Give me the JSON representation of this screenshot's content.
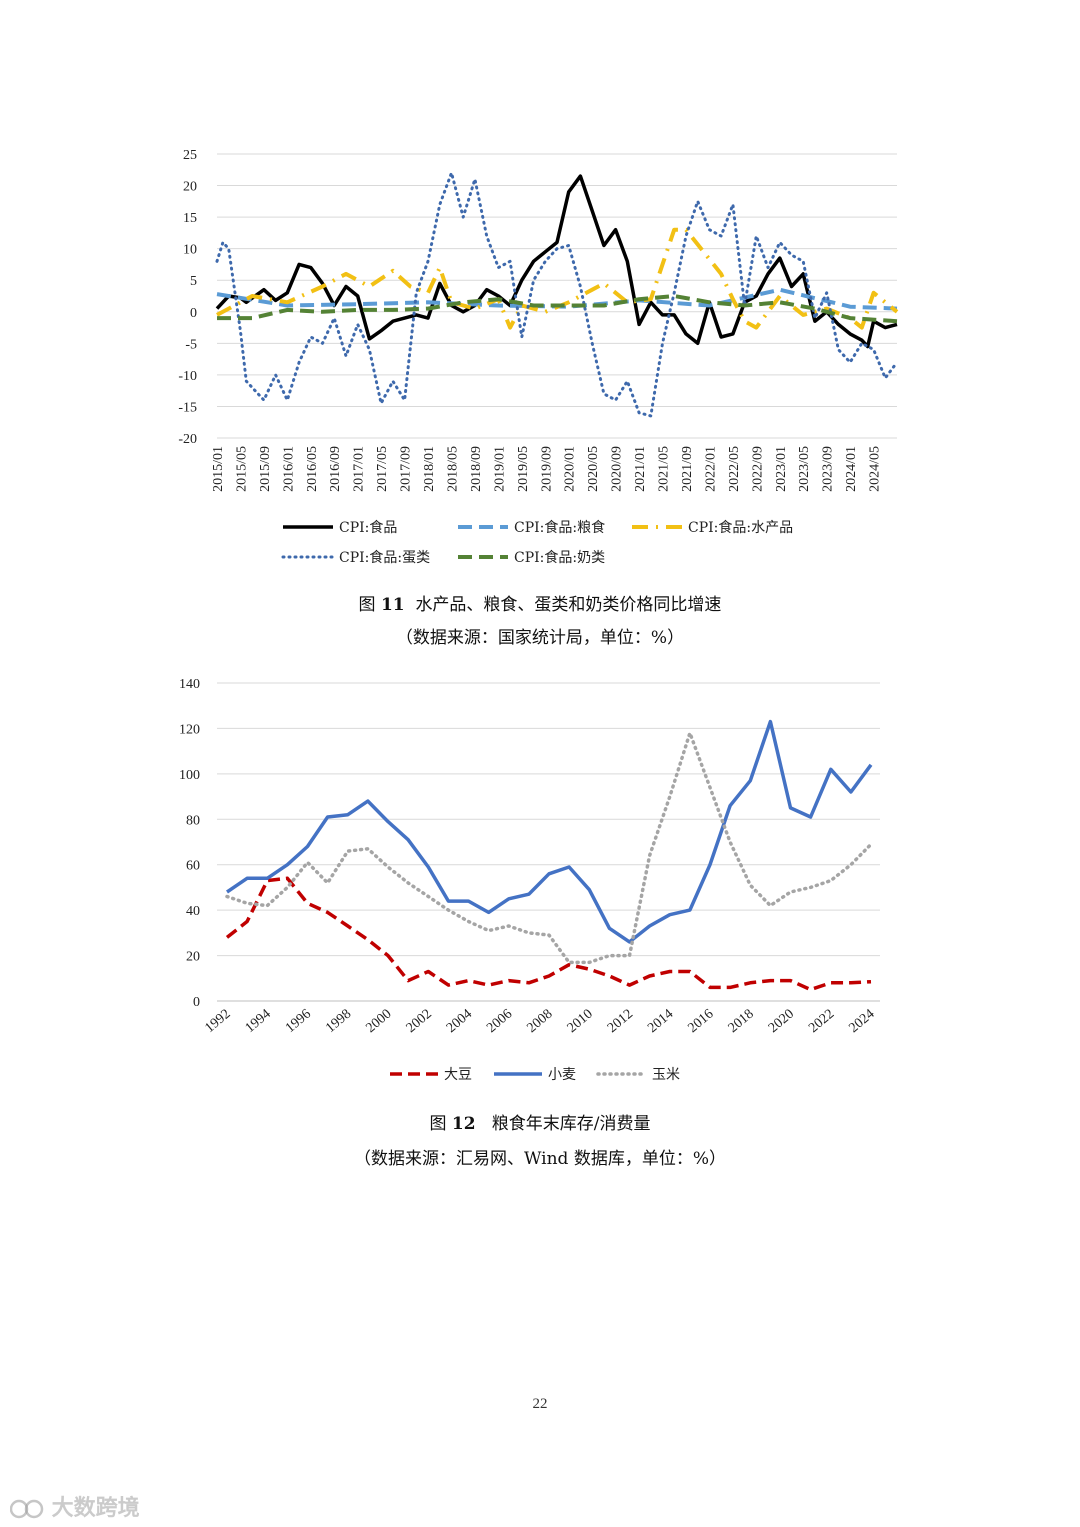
{
  "chart_data": [
    {
      "type": "line",
      "ylim": [
        -20,
        25
      ],
      "yticks": [
        -20,
        -15,
        -10,
        -5,
        0,
        5,
        10,
        15,
        20,
        25
      ],
      "x_labels": [
        "2015/01",
        "2015/05",
        "2015/09",
        "2016/01",
        "2016/05",
        "2016/09",
        "2017/01",
        "2017/05",
        "2017/09",
        "2018/01",
        "2018/05",
        "2018/09",
        "2019/01",
        "2019/05",
        "2019/09",
        "2020/01",
        "2020/05",
        "2020/09",
        "2021/01",
        "2021/05",
        "2021/09",
        "2022/01",
        "2022/05",
        "2022/09",
        "2023/01",
        "2023/05",
        "2023/09",
        "2024/01",
        "2024/05"
      ],
      "x_start": "2015/01",
      "x_end": "2024/05",
      "grid": true,
      "legend_position": "bottom",
      "series": [
        {
          "name": "CPI:食品",
          "color": "#000000",
          "style": "solid",
          "points": [
            [
              0,
              0.5
            ],
            [
              2,
              2.5
            ],
            [
              4,
              2.2
            ],
            [
              5,
              1.5
            ],
            [
              8,
              3.5
            ],
            [
              10,
              1.8
            ],
            [
              12,
              3
            ],
            [
              14,
              7.5
            ],
            [
              16,
              7
            ],
            [
              18,
              4.5
            ],
            [
              20,
              1
            ],
            [
              22,
              4
            ],
            [
              24,
              2.5
            ],
            [
              26,
              -4.3
            ],
            [
              28,
              -3
            ],
            [
              30,
              -1.5
            ],
            [
              32,
              -1
            ],
            [
              34,
              -0.5
            ],
            [
              36,
              -1
            ],
            [
              38,
              4.5
            ],
            [
              40,
              1
            ],
            [
              42,
              0
            ],
            [
              44,
              1
            ],
            [
              46,
              3.5
            ],
            [
              48,
              2.5
            ],
            [
              50,
              1
            ],
            [
              52,
              5
            ],
            [
              54,
              8
            ],
            [
              56,
              9.5
            ],
            [
              58,
              11
            ],
            [
              60,
              19
            ],
            [
              62,
              21.5
            ],
            [
              64,
              16
            ],
            [
              66,
              10.5
            ],
            [
              68,
              13
            ],
            [
              70,
              8
            ],
            [
              72,
              -2
            ],
            [
              74,
              1.5
            ],
            [
              76,
              -0.5
            ],
            [
              78,
              -0.5
            ],
            [
              80,
              -3.5
            ],
            [
              82,
              -5
            ],
            [
              84,
              1.5
            ],
            [
              86,
              -4
            ],
            [
              88,
              -3.5
            ],
            [
              90,
              1.5
            ],
            [
              92,
              2.5
            ],
            [
              94,
              6
            ],
            [
              96,
              8.5
            ],
            [
              98,
              4
            ],
            [
              100,
              6
            ],
            [
              102,
              -1.5
            ],
            [
              104,
              0
            ],
            [
              106,
              -2
            ],
            [
              108,
              -3.5
            ],
            [
              110,
              -4.5
            ],
            [
              111,
              -5.5
            ],
            [
              112,
              -1.5
            ],
            [
              114,
              -2.5
            ],
            [
              116,
              -2
            ]
          ]
        },
        {
          "name": "CPI:食品:粮食",
          "color": "#5b9bd5",
          "style": "dashed",
          "points": [
            [
              0,
              2.8
            ],
            [
              12,
              1
            ],
            [
              24,
              1.2
            ],
            [
              36,
              1.5
            ],
            [
              48,
              1
            ],
            [
              60,
              0.8
            ],
            [
              72,
              1.8
            ],
            [
              84,
              1
            ],
            [
              96,
              3.5
            ],
            [
              108,
              0.8
            ],
            [
              116,
              0.5
            ]
          ]
        },
        {
          "name": "CPI:食品:水产品",
          "color": "#f2c014",
          "style": "dashdot",
          "points": [
            [
              0,
              -0.5
            ],
            [
              6,
              2.5
            ],
            [
              12,
              1.5
            ],
            [
              18,
              4
            ],
            [
              22,
              6
            ],
            [
              26,
              4
            ],
            [
              30,
              6.5
            ],
            [
              33,
              4
            ],
            [
              36,
              3
            ],
            [
              38,
              7
            ],
            [
              40,
              1.5
            ],
            [
              44,
              0.5
            ],
            [
              48,
              2
            ],
            [
              50,
              -2.5
            ],
            [
              52,
              1
            ],
            [
              56,
              0
            ],
            [
              60,
              1.5
            ],
            [
              64,
              3.5
            ],
            [
              66,
              4.5
            ],
            [
              70,
              1.5
            ],
            [
              74,
              2
            ],
            [
              78,
              13
            ],
            [
              80,
              13
            ],
            [
              86,
              6
            ],
            [
              88,
              2
            ],
            [
              90,
              -1.5
            ],
            [
              92,
              -2.5
            ],
            [
              96,
              2.5
            ],
            [
              100,
              -0.5
            ],
            [
              104,
              0.5
            ],
            [
              108,
              -1
            ],
            [
              110,
              -2.5
            ],
            [
              112,
              3
            ],
            [
              116,
              0
            ]
          ]
        },
        {
          "name": "CPI:食品:蛋类",
          "color": "#3e69ac",
          "style": "dotted",
          "points": [
            [
              0,
              8
            ],
            [
              1,
              11
            ],
            [
              2,
              10
            ],
            [
              4,
              -3
            ],
            [
              5,
              -11
            ],
            [
              7,
              -13
            ],
            [
              8,
              -14
            ],
            [
              10,
              -10
            ],
            [
              12,
              -14
            ],
            [
              14,
              -8
            ],
            [
              16,
              -4
            ],
            [
              18,
              -5
            ],
            [
              20,
              -1
            ],
            [
              22,
              -7
            ],
            [
              24,
              -2
            ],
            [
              26,
              -6
            ],
            [
              28,
              -14.5
            ],
            [
              30,
              -11
            ],
            [
              32,
              -14
            ],
            [
              34,
              3
            ],
            [
              36,
              8
            ],
            [
              38,
              17
            ],
            [
              40,
              22
            ],
            [
              42,
              15
            ],
            [
              44,
              21
            ],
            [
              46,
              12
            ],
            [
              48,
              7
            ],
            [
              50,
              8
            ],
            [
              52,
              -4
            ],
            [
              54,
              5
            ],
            [
              56,
              8
            ],
            [
              58,
              10
            ],
            [
              60,
              10.5
            ],
            [
              62,
              4
            ],
            [
              64,
              -5
            ],
            [
              66,
              -13
            ],
            [
              68,
              -14
            ],
            [
              70,
              -11
            ],
            [
              72,
              -16
            ],
            [
              74,
              -16.5
            ],
            [
              76,
              -5
            ],
            [
              78,
              3
            ],
            [
              80,
              12
            ],
            [
              82,
              17.5
            ],
            [
              84,
              13
            ],
            [
              86,
              12
            ],
            [
              88,
              17
            ],
            [
              90,
              1
            ],
            [
              92,
              12
            ],
            [
              94,
              7
            ],
            [
              96,
              11
            ],
            [
              98,
              9
            ],
            [
              100,
              8
            ],
            [
              102,
              -1
            ],
            [
              104,
              3
            ],
            [
              106,
              -6
            ],
            [
              108,
              -8
            ],
            [
              110,
              -5
            ],
            [
              112,
              -6
            ],
            [
              114,
              -10.5
            ],
            [
              116,
              -8
            ]
          ]
        },
        {
          "name": "CPI:食品:奶类",
          "color": "#548235",
          "style": "dashed",
          "points": [
            [
              0,
              -1
            ],
            [
              6,
              -1
            ],
            [
              12,
              0.3
            ],
            [
              18,
              0
            ],
            [
              24,
              0.3
            ],
            [
              30,
              0.3
            ],
            [
              36,
              0.5
            ],
            [
              42,
              1.5
            ],
            [
              48,
              2
            ],
            [
              54,
              1
            ],
            [
              60,
              1
            ],
            [
              66,
              1
            ],
            [
              72,
              2
            ],
            [
              78,
              2.5
            ],
            [
              84,
              1.5
            ],
            [
              90,
              1
            ],
            [
              96,
              1.5
            ],
            [
              102,
              0.5
            ],
            [
              108,
              -1
            ],
            [
              116,
              -1.5
            ]
          ]
        }
      ]
    },
    {
      "type": "line",
      "categories": [
        1992,
        1993,
        1994,
        1995,
        1996,
        1997,
        1998,
        1999,
        2000,
        2001,
        2002,
        2003,
        2004,
        2005,
        2006,
        2007,
        2008,
        2009,
        2010,
        2011,
        2012,
        2013,
        2014,
        2015,
        2016,
        2017,
        2018,
        2019,
        2020,
        2021,
        2022,
        2023,
        2024
      ],
      "x_tick_labels": [
        "1992",
        "1994",
        "1996",
        "1998",
        "2000",
        "2002",
        "2004",
        "2006",
        "2008",
        "2010",
        "2012",
        "2014",
        "2016",
        "2018",
        "2020",
        "2022",
        "2024"
      ],
      "ylim": [
        0,
        140
      ],
      "yticks": [
        0,
        20,
        40,
        60,
        80,
        100,
        120,
        140
      ],
      "grid": true,
      "legend_position": "bottom",
      "series": [
        {
          "name": "大豆",
          "color": "#c00000",
          "style": "dashed",
          "values": [
            28,
            35,
            53,
            54,
            43,
            39,
            33,
            27,
            20,
            9,
            13,
            7,
            9,
            7,
            9,
            8,
            11,
            16,
            14,
            11,
            7,
            11,
            13,
            13,
            6,
            6,
            8,
            9,
            9,
            5,
            8,
            8,
            8.5
          ]
        },
        {
          "name": "小麦",
          "color": "#4472c4",
          "style": "solid",
          "values": [
            48,
            54,
            54,
            60,
            68,
            81,
            82,
            88,
            79,
            71,
            59,
            44,
            44,
            39,
            45,
            47,
            56,
            59,
            49,
            32,
            26,
            33,
            38,
            40,
            60,
            86,
            97,
            123,
            85,
            81,
            102,
            92,
            104
          ]
        },
        {
          "name": "玉米",
          "color": "#a5a5a5",
          "style": "dotted",
          "values": [
            46,
            43,
            42,
            50,
            61,
            52,
            66,
            67,
            59,
            52,
            46,
            40,
            35,
            31,
            33,
            30,
            29,
            17,
            17,
            20,
            20,
            64,
            90,
            118,
            94,
            70,
            51,
            42,
            48,
            50,
            53,
            60,
            69
          ]
        }
      ]
    }
  ],
  "captions": {
    "fig11_title_prefix": "图",
    "fig11_title_num": "11",
    "fig11_title_text": "水产品、粮食、蛋类和奶类价格同比增速",
    "fig11_source": "（数据来源：国家统计局，单位：%）",
    "fig12_title_prefix": "图",
    "fig12_title_num": "12",
    "fig12_title_text": "粮食年末库存/消费量",
    "fig12_source": "（数据来源：汇易网、Wind 数据库，单位：%）"
  },
  "page_number": "22",
  "watermark": "大数跨境"
}
